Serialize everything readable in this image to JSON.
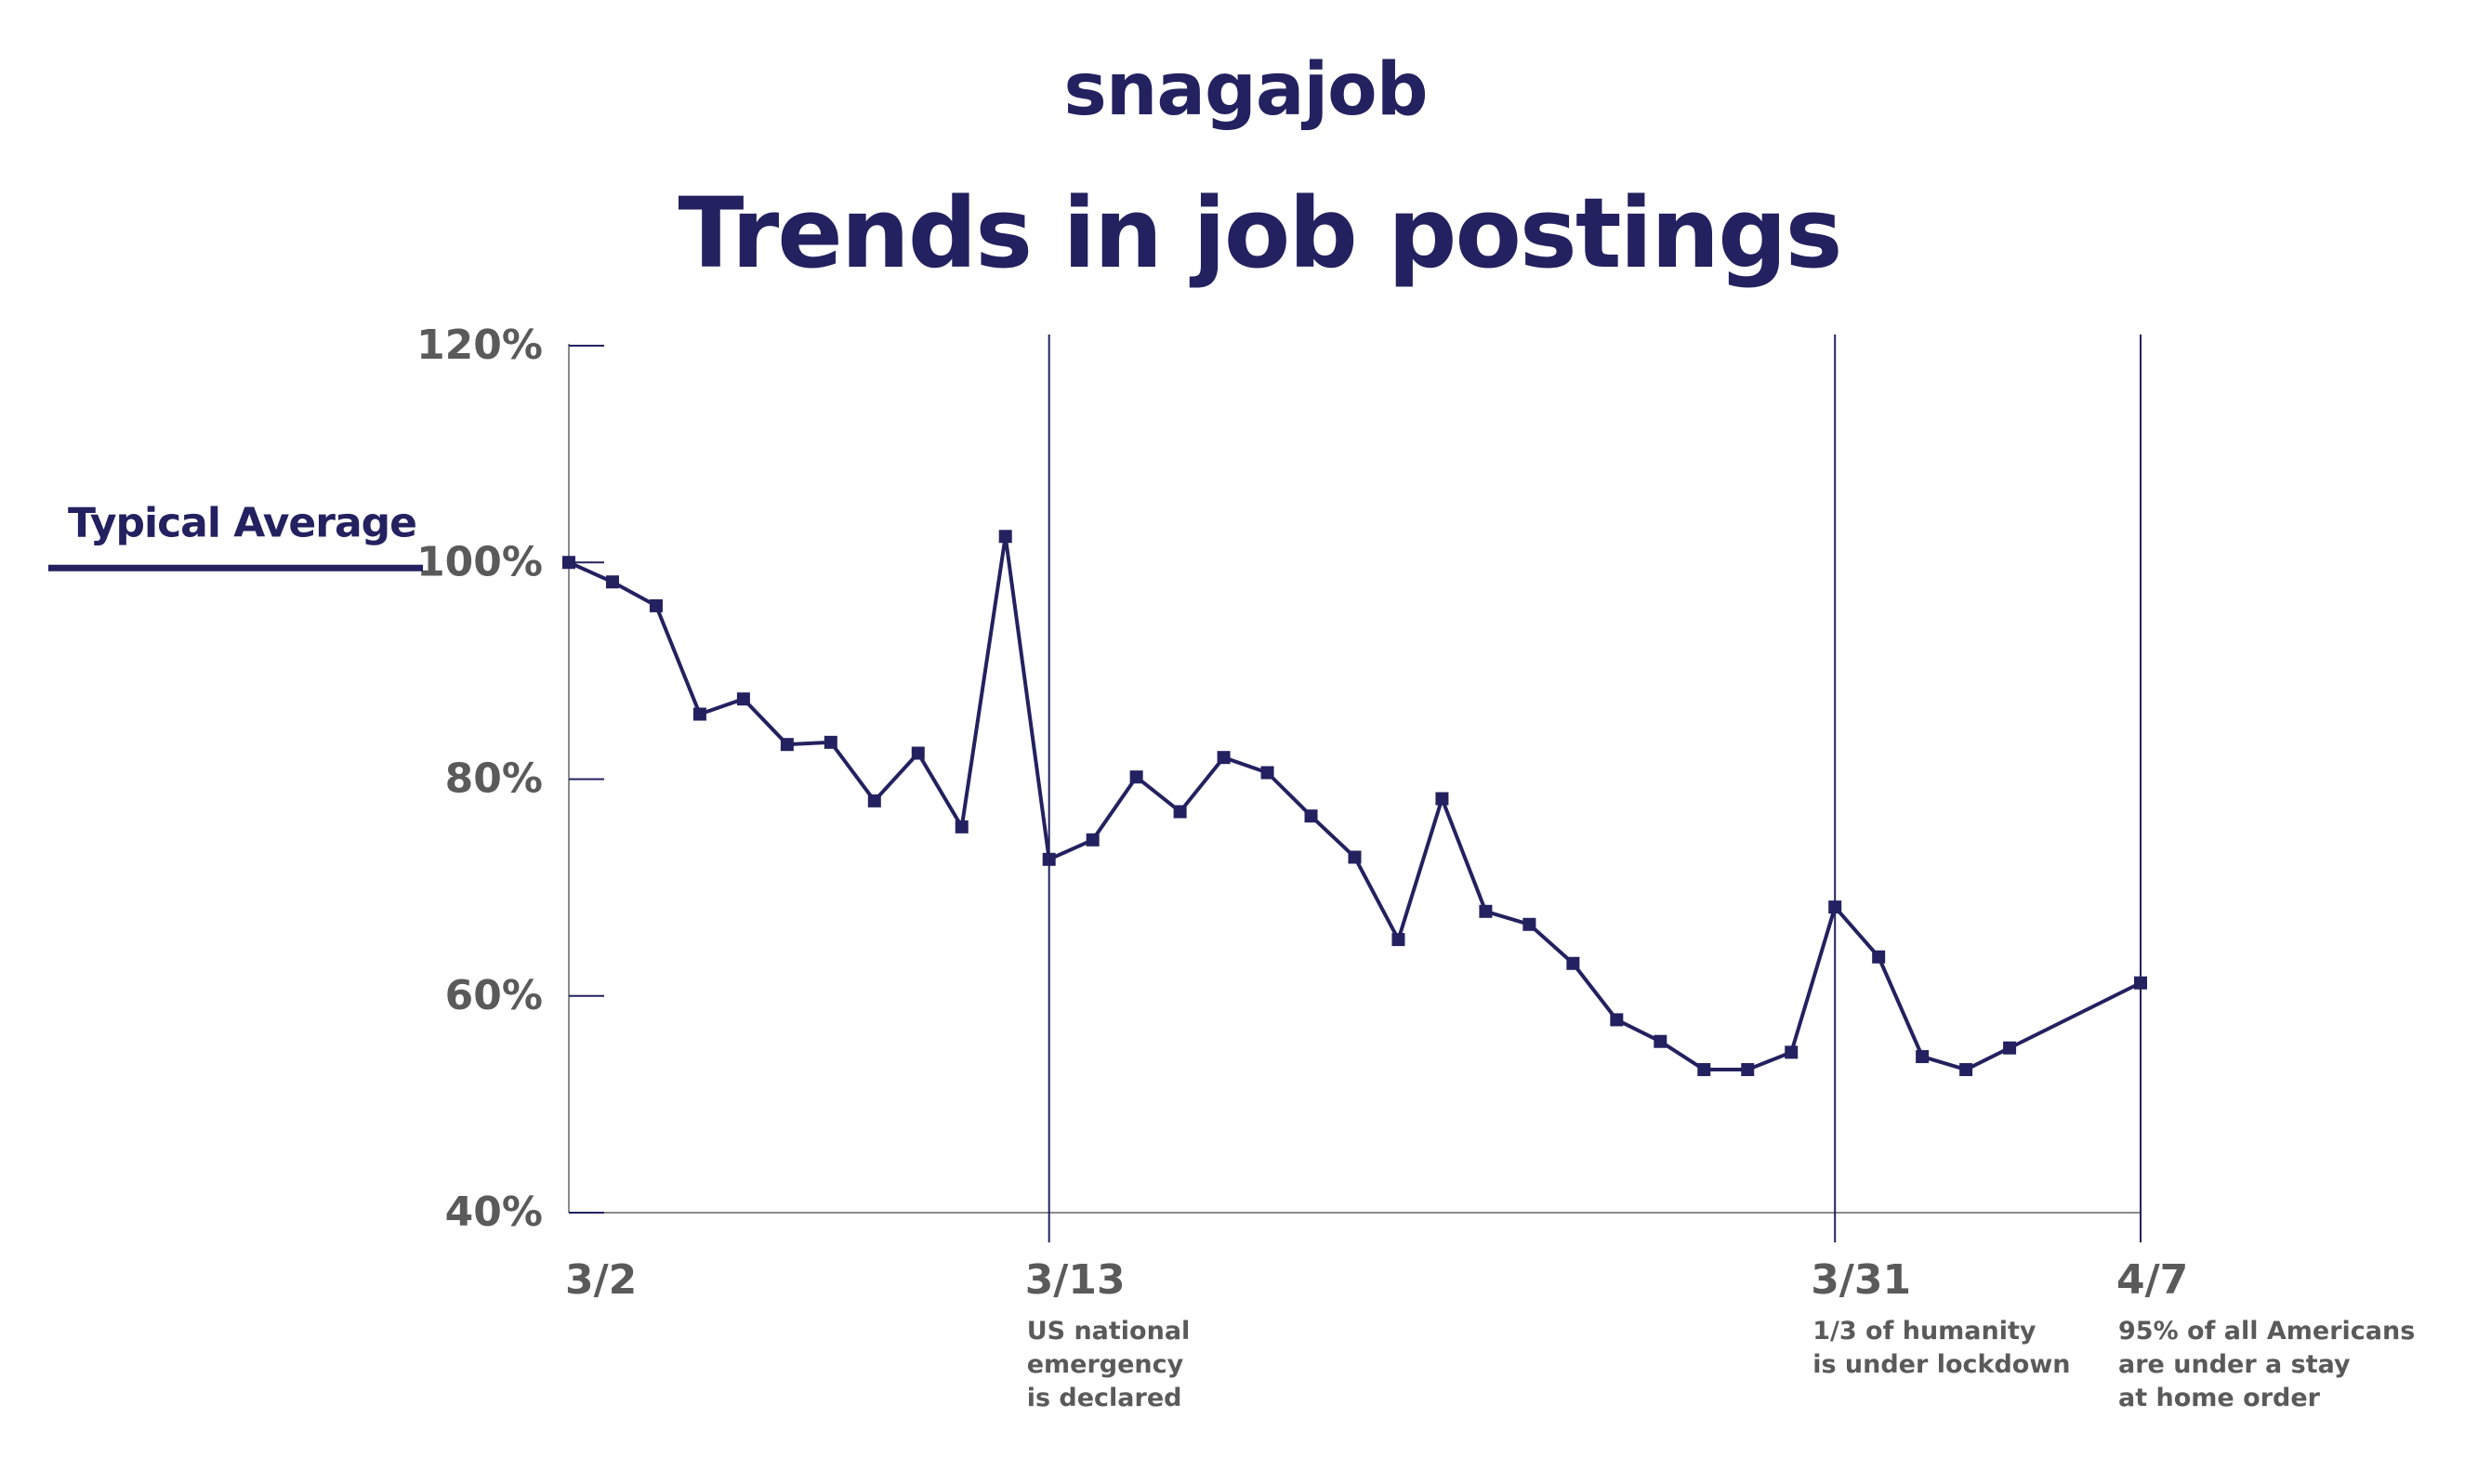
{
  "brand": {
    "logo_text": "snagajob"
  },
  "chart_data": {
    "type": "line",
    "title": "Trends in job postings",
    "ylim": [
      40,
      120
    ],
    "y_ticks": [
      {
        "value": 120,
        "label": "120%"
      },
      {
        "value": 100,
        "label": "100%"
      },
      {
        "value": 80,
        "label": "80%"
      },
      {
        "value": 60,
        "label": "60%"
      },
      {
        "value": 40,
        "label": "40%"
      }
    ],
    "xlim": [
      0,
      36
    ],
    "x_ticks": [
      {
        "x": 0,
        "label": "3/2"
      },
      {
        "x": 11,
        "label": "3/13"
      },
      {
        "x": 29,
        "label": "3/31"
      },
      {
        "x": 36,
        "label": "4/7"
      }
    ],
    "reference_line": {
      "label": "Typical Average",
      "value": 100
    },
    "events": [
      {
        "x": 11,
        "lines": [
          "US national",
          "emergency",
          "is declared"
        ]
      },
      {
        "x": 29,
        "lines": [
          "1/3 of humanity",
          "is under lockdown"
        ]
      },
      {
        "x": 36,
        "lines": [
          "95% of all Americans",
          "are under a stay",
          "at home order"
        ]
      }
    ],
    "series": [
      {
        "color": "#23215f",
        "points": [
          {
            "x": 0,
            "y": 100
          },
          {
            "x": 1,
            "y": 98.2
          },
          {
            "x": 2,
            "y": 96
          },
          {
            "x": 3,
            "y": 86
          },
          {
            "x": 4,
            "y": 87.4
          },
          {
            "x": 5,
            "y": 83.2
          },
          {
            "x": 6,
            "y": 83.4
          },
          {
            "x": 7,
            "y": 78
          },
          {
            "x": 8,
            "y": 82.4
          },
          {
            "x": 9,
            "y": 75.6
          },
          {
            "x": 10,
            "y": 102.4
          },
          {
            "x": 11,
            "y": 72.6
          },
          {
            "x": 12,
            "y": 74.4
          },
          {
            "x": 13,
            "y": 80.2
          },
          {
            "x": 14,
            "y": 77
          },
          {
            "x": 15,
            "y": 82
          },
          {
            "x": 16,
            "y": 80.6
          },
          {
            "x": 17,
            "y": 76.6
          },
          {
            "x": 18,
            "y": 72.8
          },
          {
            "x": 19,
            "y": 65.2
          },
          {
            "x": 20,
            "y": 78.2
          },
          {
            "x": 21,
            "y": 67.8
          },
          {
            "x": 22,
            "y": 66.6
          },
          {
            "x": 23,
            "y": 63
          },
          {
            "x": 24,
            "y": 57.8
          },
          {
            "x": 25,
            "y": 55.8
          },
          {
            "x": 26,
            "y": 53.2
          },
          {
            "x": 27,
            "y": 53.2
          },
          {
            "x": 28,
            "y": 54.8
          },
          {
            "x": 29,
            "y": 68.2
          },
          {
            "x": 30,
            "y": 63.6
          },
          {
            "x": 31,
            "y": 54.4
          },
          {
            "x": 32,
            "y": 53.2
          },
          {
            "x": 33,
            "y": 55.2
          },
          {
            "x": 36,
            "y": 61.2
          }
        ]
      }
    ]
  },
  "colors": {
    "accent": "#23215f",
    "tick_text": "#5a5a5a",
    "axis": "#8a8a8a"
  }
}
